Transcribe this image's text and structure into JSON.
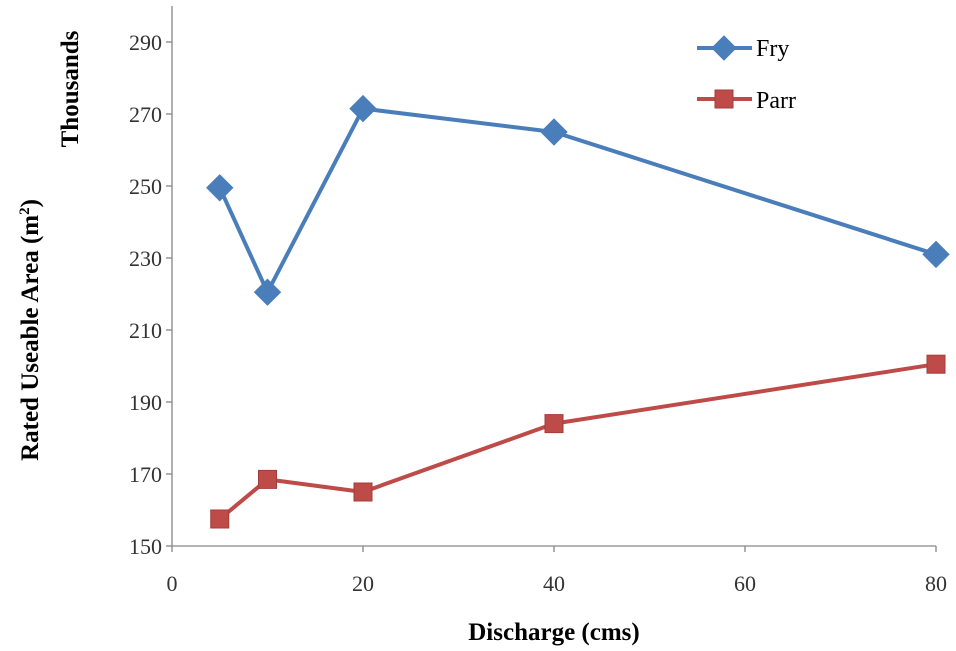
{
  "chart_data": {
    "type": "line",
    "title": "",
    "xlabel": "Discharge (cms)",
    "ylabel": "Rated Useable Area (m",
    "ylabel_superscript": "2",
    "ylabel_suffix": ")",
    "ylabel_units": "Thousands",
    "xlim": [
      0,
      80
    ],
    "ylim": [
      150,
      300
    ],
    "xticks": [
      0,
      20,
      40,
      60,
      80
    ],
    "yticks": [
      150,
      170,
      190,
      210,
      230,
      250,
      270,
      290
    ],
    "grid": false,
    "legend_position": "top-right",
    "series": [
      {
        "name": "Fry",
        "color": "#4a7ebb",
        "marker": "diamond",
        "x": [
          5,
          10,
          20,
          40,
          80
        ],
        "y": [
          249.5,
          220.5,
          271.5,
          265,
          231
        ]
      },
      {
        "name": "Parr",
        "color": "#be4b48",
        "marker": "square",
        "x": [
          5,
          10,
          20,
          40,
          80
        ],
        "y": [
          157.5,
          168.5,
          165,
          184,
          200.5
        ]
      }
    ]
  }
}
